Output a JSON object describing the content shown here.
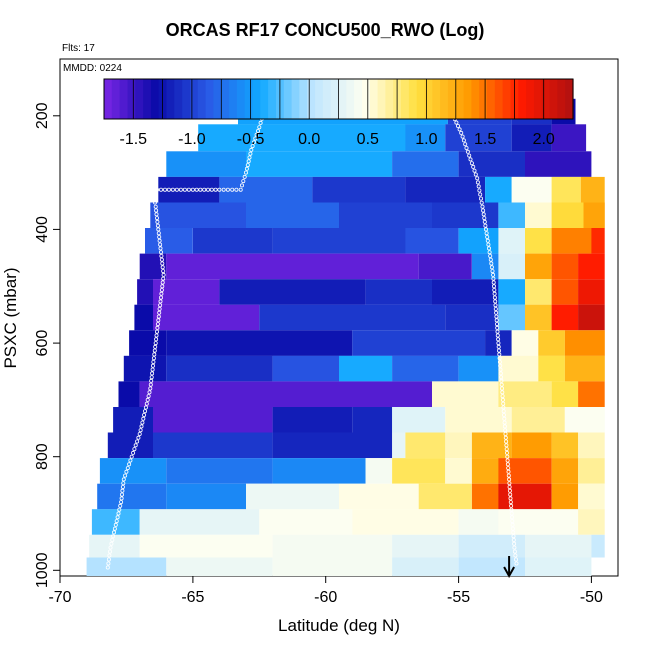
{
  "chart_data": {
    "type": "heatmap",
    "title": "ORCAS RF17 CONCU500_RWO (Log)",
    "annotations": [
      "Flts: 17",
      "MMDD: 0224"
    ],
    "xlabel": "Latitude (deg N)",
    "ylabel": "PSXC (mbar)",
    "xlim": [
      -70,
      -49
    ],
    "ylim": [
      1010,
      100
    ],
    "x_ticks": [
      -70,
      -65,
      -60,
      -55,
      -50
    ],
    "y_ticks": [
      200,
      400,
      600,
      800,
      1000
    ],
    "colorbar": {
      "range": [
        -1.75,
        2.25
      ],
      "ticks": [
        -1.5,
        -1.0,
        -0.5,
        0.0,
        0.5,
        1.0,
        1.5,
        2.0
      ],
      "tick_labels": [
        "-1.5",
        "-1.0",
        "-0.5",
        "0.0",
        "0.5",
        "1.0",
        "1.5",
        "2.0"
      ],
      "colors": [
        "#7a26e6",
        "#0a0aa8",
        "#2a5ae6",
        "#10a8ff",
        "#bfe6ff",
        "#fffff0",
        "#ffe040",
        "#ff9a00",
        "#ff1a00",
        "#b01010"
      ]
    },
    "marker": {
      "x": -53.1,
      "label": "arrow"
    },
    "bands": [
      {
        "p": 190,
        "segments": [
          [
            -63.3,
            -55.4,
            -0.45
          ],
          [
            -55.4,
            -53.0,
            -1.0
          ],
          [
            -53.0,
            -51.5,
            -1.1
          ],
          [
            -51.5,
            -50.6,
            -1.3
          ]
        ]
      },
      {
        "p": 240,
        "segments": [
          [
            -64.8,
            -57.0,
            -0.4
          ],
          [
            -57.0,
            -55.5,
            -0.55
          ],
          [
            -55.5,
            -53.0,
            -1.0
          ],
          [
            -53.0,
            -51.5,
            -1.2
          ],
          [
            -51.5,
            -50.2,
            -1.5
          ]
        ]
      },
      {
        "p": 285,
        "segments": [
          [
            -66.0,
            -63.0,
            -0.55
          ],
          [
            -63.0,
            -57.5,
            -0.4
          ],
          [
            -57.5,
            -55.0,
            -0.75
          ],
          [
            -55.0,
            -52.5,
            -1.1
          ],
          [
            -52.5,
            -50.0,
            -1.45
          ]
        ]
      },
      {
        "p": 330,
        "segments": [
          [
            -66.3,
            -64.0,
            -1.2
          ],
          [
            -64.0,
            -60.5,
            -0.8
          ],
          [
            -60.5,
            -57.0,
            -1.05
          ],
          [
            -57.0,
            -54.0,
            -1.15
          ],
          [
            -54.0,
            -53.0,
            -0.4
          ],
          [
            -53.0,
            -51.5,
            0.45
          ],
          [
            -51.5,
            -50.4,
            0.85
          ],
          [
            -50.4,
            -49.5,
            1.2
          ]
        ]
      },
      {
        "p": 375,
        "segments": [
          [
            -66.6,
            -63.0,
            -0.9
          ],
          [
            -63.0,
            -59.5,
            -0.8
          ],
          [
            -59.5,
            -56.0,
            -1.0
          ],
          [
            -56.0,
            -53.5,
            -1.05
          ],
          [
            -53.5,
            -52.5,
            -0.3
          ],
          [
            -52.5,
            -51.5,
            0.55
          ],
          [
            -51.5,
            -50.3,
            0.95
          ],
          [
            -50.3,
            -49.5,
            1.3
          ]
        ]
      },
      {
        "p": 420,
        "segments": [
          [
            -66.8,
            -65.0,
            -0.85
          ],
          [
            -65.0,
            -62.0,
            -1.05
          ],
          [
            -62.0,
            -57.0,
            -1.0
          ],
          [
            -57.0,
            -55.0,
            -0.9
          ],
          [
            -55.0,
            -53.5,
            -0.45
          ],
          [
            -53.5,
            -52.5,
            0.25
          ],
          [
            -52.5,
            -51.5,
            0.9
          ],
          [
            -51.5,
            -50.0,
            1.45
          ],
          [
            -50.0,
            -49.5,
            1.75
          ]
        ]
      },
      {
        "p": 465,
        "segments": [
          [
            -67.0,
            -66.0,
            -1.4
          ],
          [
            -66.0,
            -56.5,
            -1.65
          ],
          [
            -56.5,
            -54.5,
            -1.55
          ],
          [
            -54.5,
            -53.5,
            -0.6
          ],
          [
            -53.5,
            -52.5,
            0.2
          ],
          [
            -52.5,
            -51.5,
            1.3
          ],
          [
            -51.5,
            -50.5,
            1.6
          ],
          [
            -50.5,
            -49.5,
            1.8
          ]
        ]
      },
      {
        "p": 510,
        "segments": [
          [
            -67.1,
            -66.5,
            -1.4
          ],
          [
            -66.5,
            -64.0,
            -1.65
          ],
          [
            -64.0,
            -58.5,
            -1.2
          ],
          [
            -58.5,
            -56.0,
            -1.1
          ],
          [
            -56.0,
            -53.5,
            -1.2
          ],
          [
            -53.5,
            -52.5,
            -0.4
          ],
          [
            -52.5,
            -51.5,
            0.8
          ],
          [
            -51.5,
            -50.5,
            1.6
          ],
          [
            -50.5,
            -49.5,
            1.9
          ]
        ]
      },
      {
        "p": 555,
        "segments": [
          [
            -67.2,
            -66.5,
            -1.3
          ],
          [
            -66.5,
            -62.5,
            -1.65
          ],
          [
            -62.5,
            -55.5,
            -1.05
          ],
          [
            -55.5,
            -53.5,
            -1.1
          ],
          [
            -53.5,
            -52.5,
            -0.2
          ],
          [
            -52.5,
            -51.5,
            1.1
          ],
          [
            -51.5,
            -50.5,
            1.8
          ],
          [
            -50.5,
            -49.5,
            2.1
          ]
        ]
      },
      {
        "p": 600,
        "segments": [
          [
            -67.4,
            -66.0,
            -1.3
          ],
          [
            -66.0,
            -59.0,
            -1.25
          ],
          [
            -59.0,
            -54.0,
            -1.0
          ],
          [
            -54.0,
            -53.0,
            -1.15
          ],
          [
            -53.0,
            -52.0,
            0.5
          ],
          [
            -52.0,
            -51.0,
            1.05
          ],
          [
            -51.0,
            -49.5,
            1.4
          ]
        ]
      },
      {
        "p": 645,
        "segments": [
          [
            -67.6,
            -66.0,
            -1.25
          ],
          [
            -66.0,
            -62.0,
            -1.1
          ],
          [
            -62.0,
            -59.5,
            -0.9
          ],
          [
            -59.5,
            -57.5,
            -0.4
          ],
          [
            -57.5,
            -55.0,
            -0.8
          ],
          [
            -55.0,
            -53.5,
            -0.55
          ],
          [
            -53.5,
            -52.0,
            0.55
          ],
          [
            -52.0,
            -51.0,
            0.9
          ],
          [
            -51.0,
            -49.5,
            1.2
          ]
        ]
      },
      {
        "p": 690,
        "segments": [
          [
            -67.8,
            -67.0,
            -1.3
          ],
          [
            -67.0,
            -56.0,
            -1.6
          ],
          [
            -56.0,
            -53.5,
            0.55
          ],
          [
            -53.5,
            -51.5,
            0.75
          ],
          [
            -51.5,
            -50.5,
            0.9
          ],
          [
            -50.5,
            -49.5,
            1.5
          ]
        ]
      },
      {
        "p": 735,
        "segments": [
          [
            -68.0,
            -66.5,
            -1.2
          ],
          [
            -66.5,
            -62.0,
            -1.6
          ],
          [
            -62.0,
            -59.0,
            -1.2
          ],
          [
            -59.0,
            -57.5,
            -1.15
          ],
          [
            -57.5,
            -55.5,
            0.25
          ],
          [
            -55.5,
            -53.0,
            0.55
          ],
          [
            -53.0,
            -51.0,
            0.7
          ],
          [
            -51.0,
            -49.5,
            0.45
          ]
        ]
      },
      {
        "p": 780,
        "segments": [
          [
            -68.2,
            -66.5,
            -1.2
          ],
          [
            -66.5,
            -62.0,
            -1.05
          ],
          [
            -62.0,
            -57.5,
            -1.15
          ],
          [
            -57.5,
            -57.0,
            0.3
          ],
          [
            -57.0,
            -55.5,
            0.8
          ],
          [
            -55.5,
            -54.5,
            0.6
          ],
          [
            -54.5,
            -53.0,
            1.2
          ],
          [
            -53.0,
            -51.5,
            1.35
          ],
          [
            -51.5,
            -50.5,
            1.1
          ],
          [
            -50.5,
            -49.5,
            0.6
          ]
        ]
      },
      {
        "p": 825,
        "segments": [
          [
            -68.5,
            -66.0,
            -0.55
          ],
          [
            -66.0,
            -62.0,
            -0.7
          ],
          [
            -62.0,
            -58.5,
            -0.6
          ],
          [
            -58.5,
            -57.5,
            0.4
          ],
          [
            -57.5,
            -55.5,
            0.85
          ],
          [
            -55.5,
            -54.5,
            0.55
          ],
          [
            -54.5,
            -53.5,
            1.25
          ],
          [
            -53.5,
            -51.5,
            1.6
          ],
          [
            -51.5,
            -50.5,
            1.3
          ],
          [
            -50.5,
            -49.5,
            0.7
          ]
        ]
      },
      {
        "p": 870,
        "segments": [
          [
            -68.6,
            -66.0,
            -0.7
          ],
          [
            -66.0,
            -63.0,
            -0.6
          ],
          [
            -63.0,
            -59.5,
            0.35
          ],
          [
            -59.5,
            -56.5,
            0.5
          ],
          [
            -56.5,
            -54.5,
            0.8
          ],
          [
            -54.5,
            -53.5,
            1.5
          ],
          [
            -53.5,
            -51.5,
            1.95
          ],
          [
            -51.5,
            -50.5,
            1.35
          ],
          [
            -50.5,
            -49.5,
            0.55
          ]
        ]
      },
      {
        "p": 915,
        "segments": [
          [
            -68.8,
            -67.0,
            -0.3
          ],
          [
            -67.0,
            -62.5,
            0.3
          ],
          [
            -62.5,
            -59.0,
            0.45
          ],
          [
            -59.0,
            -55.0,
            0.5
          ],
          [
            -55.0,
            -53.5,
            0.4
          ],
          [
            -53.5,
            -50.5,
            0.45
          ],
          [
            -50.5,
            -49.5,
            0.6
          ]
        ]
      },
      {
        "p": 960,
        "segments": [
          [
            -68.9,
            -67.0,
            0.3
          ],
          [
            -67.0,
            -62.0,
            0.45
          ],
          [
            -62.0,
            -57.5,
            0.4
          ],
          [
            -57.5,
            -55.0,
            0.3
          ],
          [
            -55.0,
            -52.5,
            0.15
          ],
          [
            -52.5,
            -50.0,
            0.3
          ],
          [
            -50.0,
            -49.5,
            0.1
          ]
        ]
      },
      {
        "p": 995,
        "segments": [
          [
            -69.0,
            -66.0,
            0.0
          ],
          [
            -66.0,
            -62.0,
            0.35
          ],
          [
            -62.0,
            -57.5,
            0.4
          ],
          [
            -57.5,
            -55.0,
            0.2
          ],
          [
            -55.0,
            -52.5,
            0.05
          ],
          [
            -52.5,
            -50.0,
            0.25
          ]
        ]
      }
    ],
    "flight_track": [
      [
        -68.2,
        995
      ],
      [
        -68.1,
        960
      ],
      [
        -67.9,
        920
      ],
      [
        -67.7,
        880
      ],
      [
        -67.6,
        840
      ],
      [
        -67.3,
        800
      ],
      [
        -67.0,
        760
      ],
      [
        -66.8,
        720
      ],
      [
        -66.6,
        680
      ],
      [
        -66.5,
        640
      ],
      [
        -66.4,
        600
      ],
      [
        -66.3,
        560
      ],
      [
        -66.2,
        520
      ],
      [
        -66.1,
        480
      ],
      [
        -66.2,
        440
      ],
      [
        -66.3,
        400
      ],
      [
        -66.4,
        360
      ],
      [
        -66.5,
        330
      ],
      [
        -65.0,
        330
      ],
      [
        -64.0,
        330
      ],
      [
        -63.2,
        330
      ],
      [
        -63.0,
        300
      ],
      [
        -62.8,
        260
      ],
      [
        -62.5,
        220
      ],
      [
        -62.3,
        190
      ],
      [
        -61.0,
        180
      ],
      [
        -59.0,
        180
      ],
      [
        -57.0,
        180
      ],
      [
        -55.5,
        180
      ],
      [
        -55.2,
        200
      ],
      [
        -54.9,
        230
      ],
      [
        -54.6,
        270
      ],
      [
        -54.3,
        310
      ],
      [
        -54.1,
        360
      ],
      [
        -53.9,
        420
      ],
      [
        -53.7,
        480
      ],
      [
        -53.6,
        540
      ],
      [
        -53.5,
        600
      ],
      [
        -53.4,
        660
      ],
      [
        -53.3,
        720
      ],
      [
        -53.2,
        780
      ],
      [
        -53.1,
        840
      ],
      [
        -53.0,
        900
      ],
      [
        -52.9,
        960
      ],
      [
        -52.8,
        995
      ]
    ]
  }
}
